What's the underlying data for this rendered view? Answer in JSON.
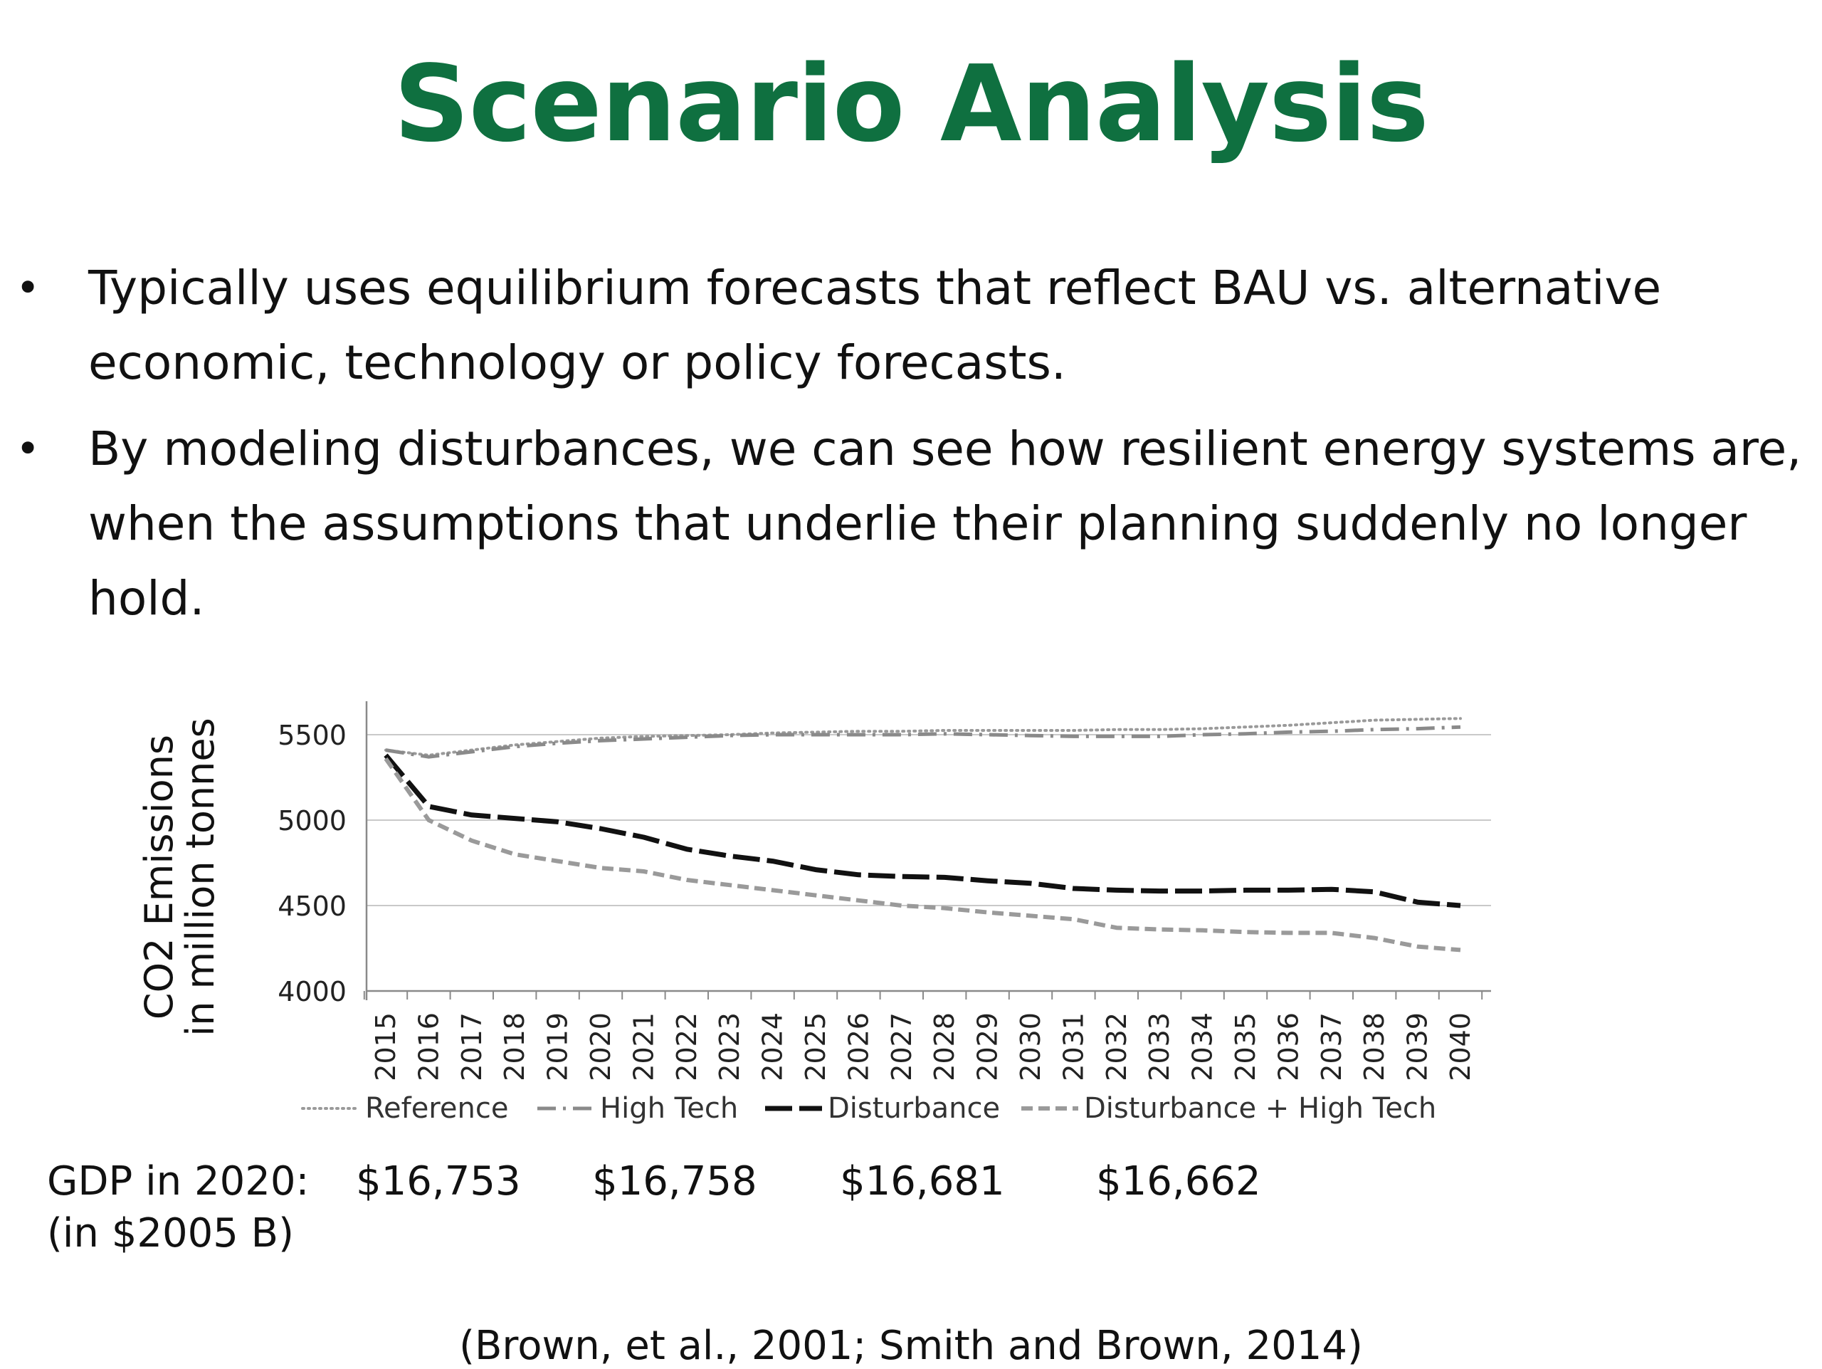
{
  "slide": {
    "title": "Scenario Analysis",
    "title_color": "#0f7040",
    "bullets": [
      "Typically uses equilibrium forecasts that reflect BAU vs.  alternative economic, technology or policy forecasts.",
      "By modeling disturbances, we can see how resilient energy systems are, when the assumptions that underlie their planning suddenly no longer hold."
    ],
    "gdp_label_line1": "GDP in 2020:",
    "gdp_label_line2": "(in $2005 B)",
    "gdp_values": [
      "$16,753",
      "$16,758",
      "$16,681",
      "$16,662"
    ],
    "citation": "(Brown, et al., 2001; Smith and Brown, 2014)"
  },
  "chart_data": {
    "type": "line",
    "ylabel_line1": "CO2 Emissions",
    "ylabel_line2": "in million tonnes",
    "ylim": [
      4000,
      5500
    ],
    "yticks": [
      4000,
      4500,
      5000,
      5500
    ],
    "grid": true,
    "legend_position": "bottom",
    "x": [
      "2015",
      "2016",
      "2017",
      "2018",
      "2019",
      "2020",
      "2021",
      "2022",
      "2023",
      "2024",
      "2025",
      "2026",
      "2027",
      "2028",
      "2029",
      "2030",
      "2031",
      "2032",
      "2033",
      "2034",
      "2035",
      "2036",
      "2037",
      "2038",
      "2039",
      "2040"
    ],
    "series": [
      {
        "name": "Reference",
        "style": "dotted",
        "values": [
          5410,
          5380,
          5410,
          5440,
          5460,
          5480,
          5490,
          5495,
          5500,
          5510,
          5515,
          5520,
          5520,
          5525,
          5525,
          5525,
          5525,
          5530,
          5530,
          5535,
          5545,
          5555,
          5570,
          5585,
          5590,
          5595
        ]
      },
      {
        "name": "High Tech",
        "style": "dashdot",
        "values": [
          5410,
          5370,
          5400,
          5430,
          5450,
          5465,
          5475,
          5485,
          5495,
          5500,
          5500,
          5500,
          5500,
          5505,
          5500,
          5495,
          5490,
          5490,
          5490,
          5500,
          5505,
          5515,
          5520,
          5530,
          5535,
          5545
        ]
      },
      {
        "name": "Disturbance",
        "style": "longdash",
        "values": [
          5380,
          5080,
          5030,
          5010,
          4990,
          4950,
          4900,
          4830,
          4790,
          4760,
          4710,
          4680,
          4670,
          4665,
          4645,
          4630,
          4600,
          4590,
          4585,
          4585,
          4590,
          4590,
          4595,
          4580,
          4520,
          4500
        ]
      },
      {
        "name": "Disturbance + High Tech",
        "style": "shortdash",
        "values": [
          5360,
          5000,
          4880,
          4800,
          4760,
          4720,
          4700,
          4650,
          4620,
          4590,
          4560,
          4530,
          4500,
          4485,
          4460,
          4440,
          4420,
          4370,
          4360,
          4355,
          4345,
          4340,
          4340,
          4310,
          4260,
          4240
        ]
      }
    ]
  }
}
